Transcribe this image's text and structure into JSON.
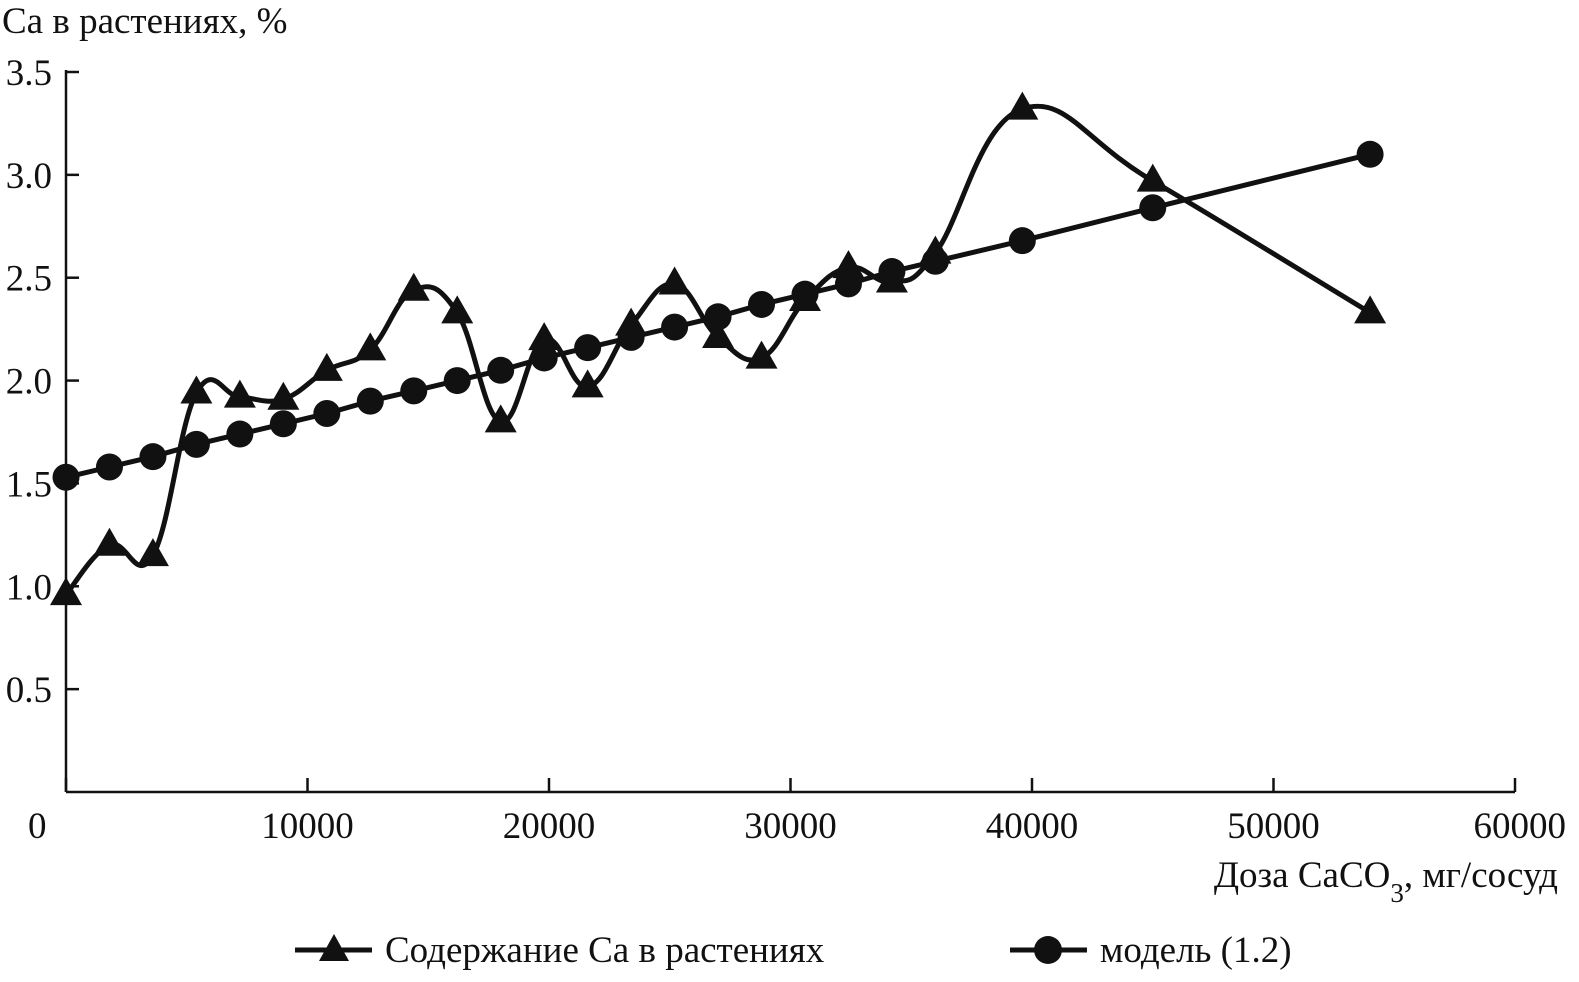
{
  "chart_data": {
    "type": "line",
    "ylabel": "Ca в растениях, %",
    "xlabel": {
      "prefix": "Доза CaCO",
      "subscript": "3",
      "suffix": ", мг/сосуд"
    },
    "xlim": [
      0,
      60000
    ],
    "ylim": [
      0,
      3.5
    ],
    "x_ticks": [
      "0",
      "10000",
      "20000",
      "30000",
      "40000",
      "50000",
      "60000"
    ],
    "y_ticks": [
      "0.5",
      "1.0",
      "1.5",
      "2.0",
      "2.5",
      "3.0",
      "3.5"
    ],
    "grid": false,
    "legend_position": "bottom",
    "series": [
      {
        "name": "Содержание Ca в растениях",
        "marker": "triangle",
        "smooth": true,
        "color": "#111111",
        "x": [
          0,
          1800,
          3600,
          5400,
          7200,
          9000,
          10800,
          12600,
          14400,
          16200,
          18000,
          19800,
          21600,
          23400,
          25200,
          27000,
          28800,
          30600,
          32400,
          34200,
          36000,
          39600,
          45000,
          54000
        ],
        "y": [
          0.96,
          1.2,
          1.15,
          1.94,
          1.92,
          1.91,
          2.05,
          2.15,
          2.44,
          2.33,
          1.8,
          2.2,
          1.97,
          2.27,
          2.47,
          2.21,
          2.11,
          2.39,
          2.55,
          2.48,
          2.62,
          3.32,
          2.97,
          2.33
        ]
      },
      {
        "name": "модель (1.2)",
        "marker": "circle",
        "smooth": false,
        "color": "#111111",
        "x": [
          0,
          1800,
          3600,
          5400,
          7200,
          9000,
          10800,
          12600,
          14400,
          16200,
          18000,
          19800,
          21600,
          23400,
          25200,
          27000,
          28800,
          30600,
          32400,
          34200,
          36000,
          39600,
          45000,
          54000
        ],
        "y": [
          1.53,
          1.58,
          1.63,
          1.69,
          1.74,
          1.79,
          1.84,
          1.9,
          1.95,
          2.0,
          2.05,
          2.11,
          2.16,
          2.21,
          2.26,
          2.31,
          2.37,
          2.42,
          2.47,
          2.53,
          2.58,
          2.68,
          2.84,
          3.1
        ]
      }
    ]
  }
}
